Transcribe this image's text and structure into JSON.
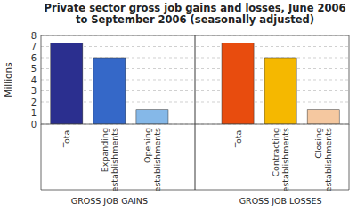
{
  "chart_data": {
    "type": "bar",
    "title": "Private sector gross job gains and losses, June 2006\nto September 2006 (seasonally adjusted)",
    "ylabel": "Millions",
    "categories": [
      "Total",
      "Expanding\nestablishments",
      "Opening\nestablishments",
      "Total",
      "Contracting\nestablishments",
      "Closing\nestablishments"
    ],
    "values": [
      7.3,
      6.0,
      1.3,
      7.3,
      6.0,
      1.3
    ],
    "colors": [
      "#2b2f8f",
      "#3568c8",
      "#85b8e8",
      "#e84c0e",
      "#f5b800",
      "#f5c8a0"
    ],
    "groups": [
      "GROSS JOB GAINS",
      "GROSS JOB LOSSES"
    ],
    "ylim": [
      0,
      8
    ],
    "yticks": [
      0,
      1,
      2,
      3,
      4,
      5,
      6,
      7,
      8
    ],
    "grid": true
  }
}
